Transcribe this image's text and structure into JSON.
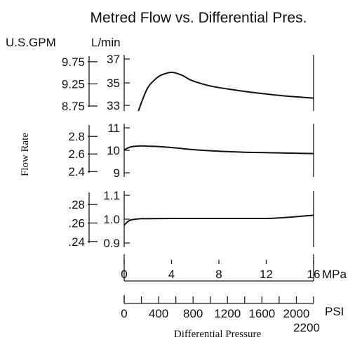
{
  "chart_data": {
    "type": "line",
    "title": "Metred Flow vs. Differential Pres.",
    "left_unit_label": "U.S.GPM",
    "right_unit_label": "L/min",
    "ylabel": "Flow Rate",
    "xlabel": "Differential Pressure",
    "x_axis_mpa": {
      "unit": "MPa",
      "ticks": [
        0,
        4,
        8,
        12,
        16
      ],
      "range": [
        0,
        16
      ]
    },
    "x_axis_psi": {
      "unit": "PSI",
      "ticks": [
        0,
        400,
        800,
        1200,
        1600,
        2000,
        2200
      ],
      "tick_labels": [
        "0",
        "400",
        "800",
        "1200",
        "1600",
        "2000",
        "2200"
      ],
      "minor_step": 200,
      "range": [
        0,
        2200
      ]
    },
    "panels": [
      {
        "lmin_ticks": [
          "37",
          "35",
          "33"
        ],
        "lmin_range": [
          32.7,
          37.5
        ],
        "gpm_ticks": [
          "9.75",
          "9.25",
          "8.75"
        ],
        "gpm_values": [
          9.75,
          9.25,
          8.75
        ],
        "series": {
          "x_mpa": [
            1.2,
            1.6,
            2.0,
            2.5,
            3.0,
            3.5,
            4.0,
            4.5,
            5.0,
            5.5,
            6.0,
            7.0,
            8.0,
            10.0,
            12.0,
            14.0,
            16.0
          ],
          "y_lmin": [
            32.7,
            33.8,
            34.7,
            35.3,
            35.7,
            35.9,
            36.0,
            35.9,
            35.7,
            35.4,
            35.2,
            34.9,
            34.7,
            34.4,
            34.15,
            33.95,
            33.8
          ]
        }
      },
      {
        "lmin_ticks": [
          "11",
          "10",
          "9"
        ],
        "lmin_range": [
          8.85,
          11.15
        ],
        "gpm_ticks": [
          "2.8",
          "2.6",
          "2.4"
        ],
        "gpm_values": [
          2.8,
          2.6,
          2.4
        ],
        "series": {
          "x_mpa": [
            0.0,
            0.5,
            1.0,
            1.5,
            2.0,
            3.0,
            4.0,
            5.0,
            6.0,
            8.0,
            10.0,
            12.0,
            14.0,
            16.0
          ],
          "y_lmin": [
            10.02,
            10.14,
            10.18,
            10.19,
            10.18,
            10.16,
            10.12,
            10.07,
            10.02,
            9.96,
            9.92,
            9.9,
            9.88,
            9.86
          ]
        }
      },
      {
        "lmin_ticks": [
          "1.1",
          "1.0",
          "0.9"
        ],
        "lmin_range": [
          0.885,
          1.115
        ],
        "gpm_ticks": [
          ".28",
          ".26",
          ".24"
        ],
        "gpm_values": [
          0.28,
          0.26,
          0.24
        ],
        "series": {
          "x_mpa": [
            0.0,
            0.3,
            0.6,
            1.0,
            1.5,
            2.0,
            4.0,
            8.0,
            12.0,
            13.0,
            14.0,
            15.0,
            16.0
          ],
          "y_lmin": [
            0.975,
            0.99,
            0.997,
            1.0,
            1.002,
            1.002,
            1.003,
            1.003,
            1.003,
            1.005,
            1.008,
            1.012,
            1.016
          ]
        }
      }
    ]
  }
}
